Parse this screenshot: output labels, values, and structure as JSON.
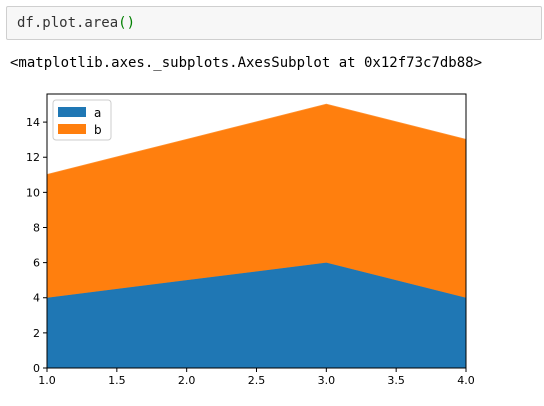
{
  "cell": {
    "code": "df.plot.area",
    "code_parens": "()"
  },
  "output": {
    "text": "<matplotlib.axes._subplots.AxesSubplot at 0x12f73c7db88>"
  },
  "colors": {
    "series_a": "#1f77b4",
    "series_b": "#ff7f0e"
  },
  "chart_data": {
    "type": "area",
    "stacked": true,
    "x": [
      1,
      2,
      3,
      4
    ],
    "series": [
      {
        "name": "a",
        "values": [
          4,
          5,
          6,
          4
        ]
      },
      {
        "name": "b",
        "values": [
          7,
          8,
          9,
          9
        ]
      }
    ],
    "xlim": [
      1.0,
      4.0
    ],
    "ylim": [
      0,
      15.6
    ],
    "xticks": [
      "1.0",
      "1.5",
      "2.0",
      "2.5",
      "3.0",
      "3.5",
      "4.0"
    ],
    "yticks": [
      "0",
      "2",
      "4",
      "6",
      "8",
      "10",
      "12",
      "14"
    ],
    "legend_position": "top-left",
    "grid": false,
    "title": "",
    "xlabel": "",
    "ylabel": ""
  }
}
